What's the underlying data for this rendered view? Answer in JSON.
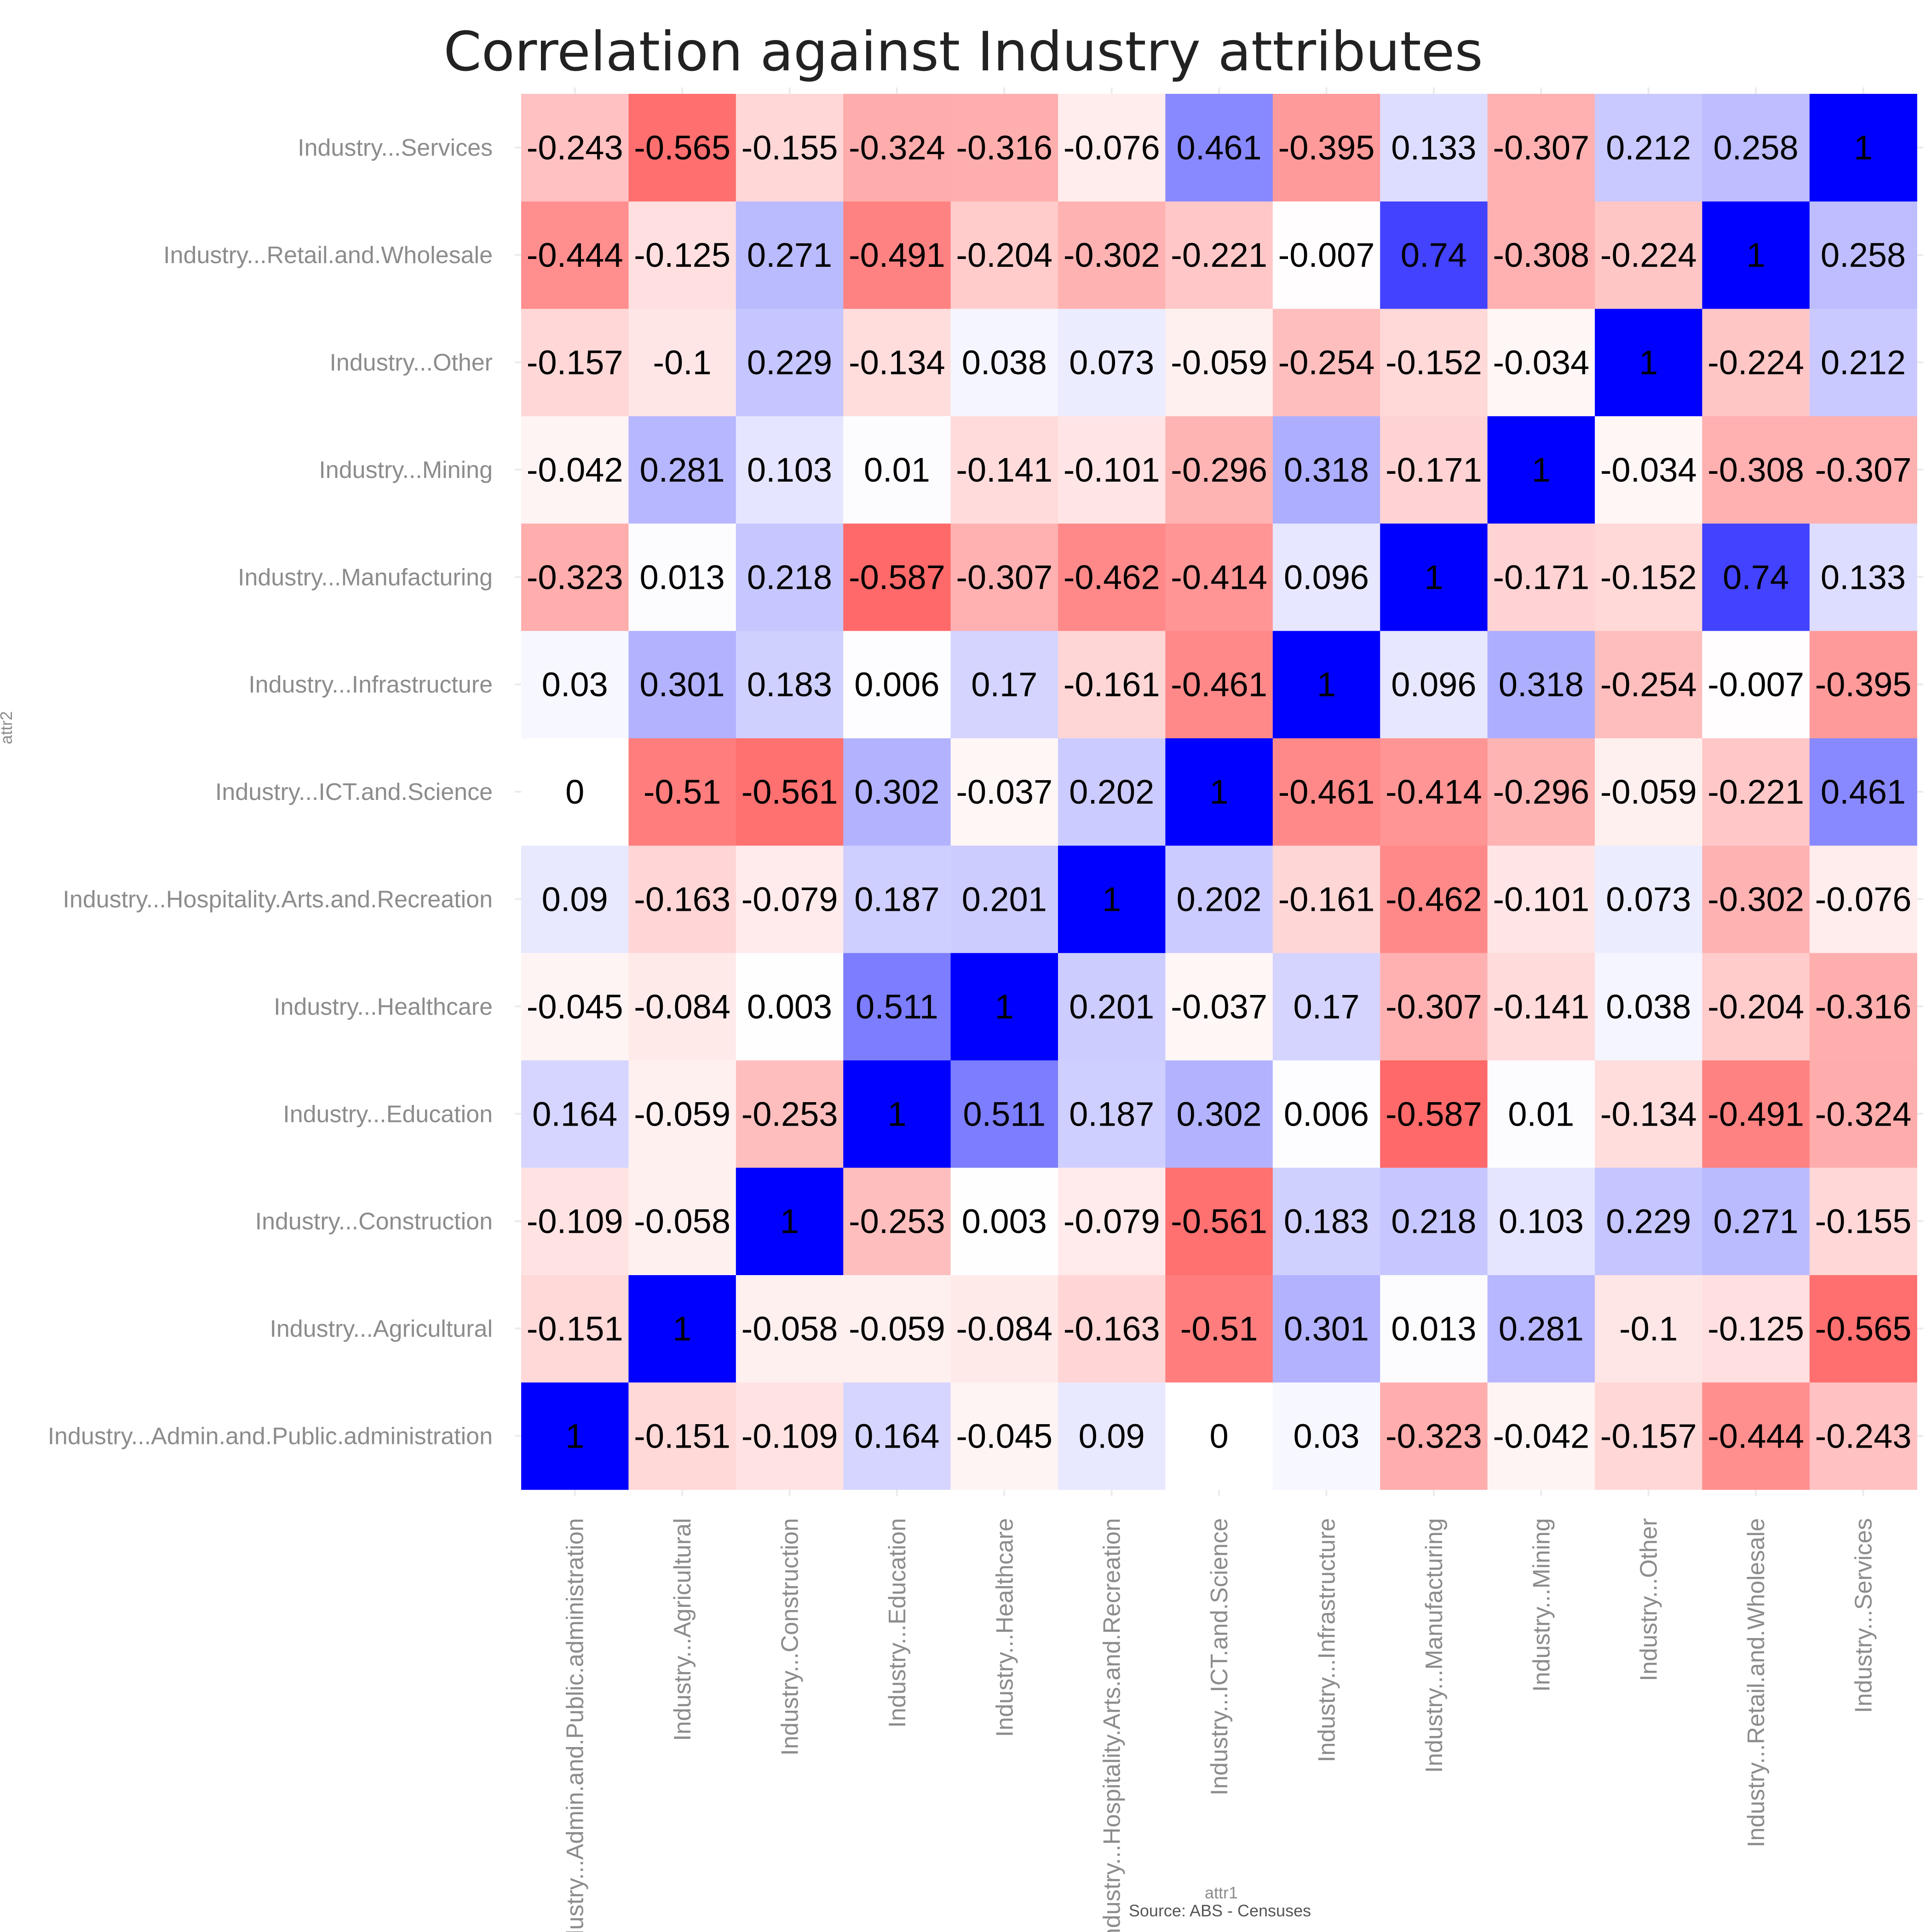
{
  "chart_data": {
    "type": "heatmap",
    "title": "Correlation against Industry attributes",
    "xlabel": "attr1",
    "ylabel": "attr2",
    "caption": "Source: ABS - Censuses",
    "categories": [
      "Industry...Admin.and.Public.administration",
      "Industry...Agricultural",
      "Industry...Construction",
      "Industry...Education",
      "Industry...Healthcare",
      "Industry...Hospitality.Arts.and.Recreation",
      "Industry...ICT.and.Science",
      "Industry...Infrastructure",
      "Industry...Manufacturing",
      "Industry...Mining",
      "Industry...Other",
      "Industry...Retail.and.Wholesale",
      "Industry...Services"
    ],
    "values": [
      [
        1,
        -0.151,
        -0.109,
        0.164,
        -0.045,
        0.09,
        0,
        0.03,
        -0.323,
        -0.042,
        -0.157,
        -0.444,
        -0.243
      ],
      [
        -0.151,
        1,
        -0.058,
        -0.059,
        -0.084,
        -0.163,
        -0.51,
        0.301,
        0.013,
        0.281,
        -0.1,
        -0.125,
        -0.565
      ],
      [
        -0.109,
        -0.058,
        1,
        -0.253,
        0.003,
        -0.079,
        -0.561,
        0.183,
        0.218,
        0.103,
        0.229,
        0.271,
        -0.155
      ],
      [
        0.164,
        -0.059,
        -0.253,
        1,
        0.511,
        0.187,
        0.302,
        0.006,
        -0.587,
        0.01,
        -0.134,
        -0.491,
        -0.324
      ],
      [
        -0.045,
        -0.084,
        0.003,
        0.511,
        1,
        0.201,
        -0.037,
        0.17,
        -0.307,
        -0.141,
        0.038,
        -0.204,
        -0.316
      ],
      [
        0.09,
        -0.163,
        -0.079,
        0.187,
        0.201,
        1,
        0.202,
        -0.161,
        -0.462,
        -0.101,
        0.073,
        -0.302,
        -0.076
      ],
      [
        0,
        -0.51,
        -0.561,
        0.302,
        -0.037,
        0.202,
        1,
        -0.461,
        -0.414,
        -0.296,
        -0.059,
        -0.221,
        0.461
      ],
      [
        0.03,
        0.301,
        0.183,
        0.006,
        0.17,
        -0.161,
        -0.461,
        1,
        0.096,
        0.318,
        -0.254,
        -0.007,
        -0.395
      ],
      [
        -0.323,
        0.013,
        0.218,
        -0.587,
        -0.307,
        -0.462,
        -0.414,
        0.096,
        1,
        -0.171,
        -0.152,
        0.74,
        0.133
      ],
      [
        -0.042,
        0.281,
        0.103,
        0.01,
        -0.141,
        -0.101,
        -0.296,
        0.318,
        -0.171,
        1,
        -0.034,
        -0.308,
        -0.307
      ],
      [
        -0.157,
        -0.1,
        0.229,
        -0.134,
        0.038,
        0.073,
        -0.059,
        -0.254,
        -0.152,
        -0.034,
        1,
        -0.224,
        0.212
      ],
      [
        -0.444,
        -0.125,
        0.271,
        -0.491,
        -0.204,
        -0.302,
        -0.221,
        -0.007,
        0.74,
        -0.308,
        -0.224,
        1,
        0.258
      ],
      [
        -0.243,
        -0.565,
        -0.155,
        -0.324,
        -0.316,
        -0.076,
        0.461,
        -0.395,
        0.133,
        -0.307,
        0.212,
        0.258,
        1
      ]
    ],
    "color_scale": {
      "min": -1,
      "max": 1,
      "low": "#ff0000",
      "mid": "#ffffff",
      "high": "#0000ff"
    },
    "grid": true,
    "legend": "none"
  }
}
